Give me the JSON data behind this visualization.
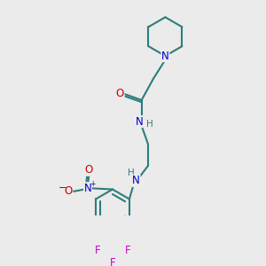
{
  "background_color": "#ebebeb",
  "bond_color": "#2d7d7d",
  "N_color": "#0000cc",
  "O_color": "#cc0000",
  "F_color": "#cc00cc",
  "bond_width": 1.5,
  "font_size": 8.5,
  "xlim": [
    0,
    10
  ],
  "ylim": [
    0,
    10
  ]
}
